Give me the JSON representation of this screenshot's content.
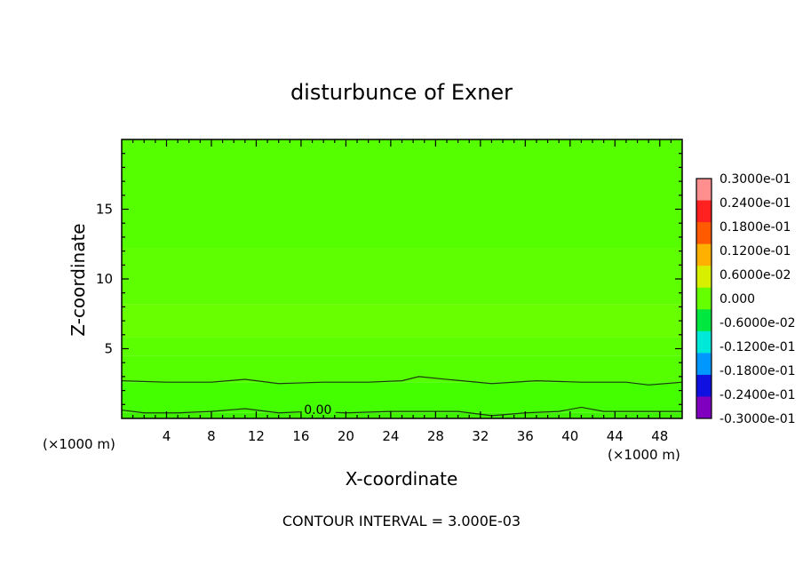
{
  "chart_data": {
    "type": "heatmap",
    "title": "disturbunce of Exner",
    "xlabel": "X-coordinate",
    "ylabel": "Z-coordinate",
    "x_unit_left": "(×1000 m)",
    "x_unit_right": "(×1000 m)",
    "xlim": [
      0,
      50
    ],
    "ylim": [
      0,
      20
    ],
    "x_ticks": [
      4,
      8,
      12,
      16,
      20,
      24,
      28,
      32,
      36,
      40,
      44,
      48
    ],
    "y_ticks": [
      5,
      10,
      15
    ],
    "footer": "CONTOUR INTERVAL = 3.000E-03",
    "contour_label": "0.00",
    "contour_label_x": 17.5,
    "contour_label_z": 0.5,
    "colorbar": {
      "labels": [
        "0.3000e-01",
        "0.2400e-01",
        "0.1800e-01",
        "0.1200e-01",
        "0.6000e-02",
        "0.000",
        "-0.6000e-02",
        "-0.1200e-01",
        "-0.1800e-01",
        "-0.2400e-01",
        "-0.3000e-01"
      ],
      "colors": [
        "#ff8f8f",
        "#ff2020",
        "#ff5a00",
        "#ffb000",
        "#d8f000",
        "#66ff00",
        "#00e840",
        "#00e8d8",
        "#0098ff",
        "#1010e0",
        "#8000c0"
      ]
    },
    "field_bands": [
      {
        "z_from": 0.0,
        "z_to": 0.4,
        "color": "#3ff000"
      },
      {
        "z_from": 0.4,
        "z_to": 2.6,
        "color": "#44ff00"
      },
      {
        "z_from": 2.6,
        "z_to": 4.5,
        "color": "#55ff00"
      },
      {
        "z_from": 4.5,
        "z_to": 5.8,
        "color": "#5cff00"
      },
      {
        "z_from": 5.8,
        "z_to": 8.2,
        "color": "#68ff00"
      },
      {
        "z_from": 8.2,
        "z_to": 12.2,
        "color": "#5eff00"
      },
      {
        "z_from": 12.2,
        "z_to": 20.0,
        "color": "#55ff00"
      }
    ],
    "contour_lines": [
      {
        "level": 0.003,
        "points": [
          [
            0,
            2.7
          ],
          [
            4,
            2.6
          ],
          [
            8,
            2.6
          ],
          [
            11,
            2.8
          ],
          [
            14,
            2.5
          ],
          [
            18,
            2.6
          ],
          [
            22,
            2.6
          ],
          [
            25,
            2.7
          ],
          [
            26.5,
            3.0
          ],
          [
            29,
            2.8
          ],
          [
            33,
            2.5
          ],
          [
            37,
            2.7
          ],
          [
            41,
            2.6
          ],
          [
            45,
            2.6
          ],
          [
            47,
            2.4
          ],
          [
            50,
            2.6
          ]
        ]
      },
      {
        "level": 0.0,
        "points": [
          [
            0,
            0.6
          ],
          [
            2,
            0.4
          ],
          [
            5,
            0.4
          ],
          [
            8,
            0.5
          ],
          [
            11,
            0.7
          ],
          [
            14,
            0.4
          ],
          [
            17,
            0.5
          ],
          [
            20,
            0.4
          ],
          [
            24,
            0.5
          ],
          [
            27,
            0.5
          ],
          [
            30,
            0.5
          ],
          [
            33,
            0.2
          ],
          [
            36,
            0.4
          ],
          [
            39,
            0.5
          ],
          [
            41,
            0.8
          ],
          [
            43,
            0.5
          ],
          [
            46,
            0.5
          ],
          [
            50,
            0.5
          ]
        ]
      }
    ]
  }
}
